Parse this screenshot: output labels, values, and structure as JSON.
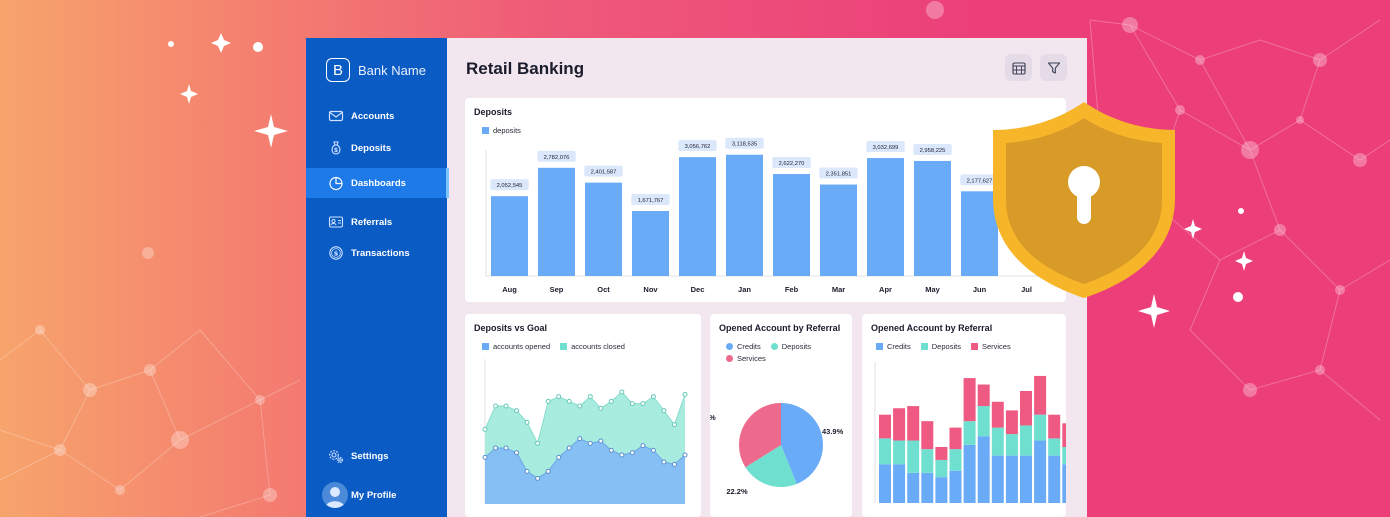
{
  "app": {
    "brand_name": "Bank Name",
    "brand_letter": "B",
    "page_title": "Retail Banking"
  },
  "sidebar": {
    "items": [
      {
        "label": "Accounts",
        "icon": "envelope-icon"
      },
      {
        "label": "Deposits",
        "icon": "money-bag-icon"
      },
      {
        "label": "Dashboards",
        "icon": "pie-chart-icon",
        "active": true
      },
      {
        "label": "Referrals",
        "icon": "id-card-icon"
      },
      {
        "label": "Transactions",
        "icon": "dollar-coin-icon"
      }
    ],
    "settings_label": "Settings",
    "profile_label": "My Profile"
  },
  "toolbar": {
    "calendar_icon": "calendar-icon",
    "filter_icon": "filter-icon"
  },
  "colors": {
    "blue": "#6aabf7",
    "teal": "#6fe0cf",
    "pink": "#ee5a82",
    "sidebar": "#0a5bc4",
    "active": "#1d7ae8"
  },
  "chart_data": [
    {
      "type": "bar",
      "title": "Deposits",
      "categories": [
        "Aug",
        "Sep",
        "Oct",
        "Nov",
        "Dec",
        "Jan",
        "Feb",
        "Mar",
        "Apr",
        "May",
        "Jun",
        "Jul"
      ],
      "series": [
        {
          "name": "deposits",
          "values": [
            2052545,
            2782076,
            2401587,
            1671767,
            3056762,
            3118535,
            2622270,
            2351851,
            3032699,
            2958225,
            2177627,
            null
          ]
        }
      ],
      "data_labels": [
        "2,052,545",
        "2,782,076",
        "2,401,587",
        "1,671,767",
        "3,056,762",
        "3,118,535",
        "2,622,270",
        "2,351,851",
        "3,032,699",
        "2,958,225",
        "2,177,627",
        ""
      ],
      "ylim": [
        0,
        3600000
      ]
    },
    {
      "type": "area",
      "title": "Deposits vs Goal",
      "x": [
        1,
        2,
        3,
        4,
        5,
        6,
        7,
        8,
        9,
        10,
        11,
        12,
        13,
        14,
        15,
        16,
        17,
        18,
        19,
        20
      ],
      "series": [
        {
          "name": "accounts opened",
          "values": [
            32,
            42,
            42,
            40,
            35,
            26,
            44,
            46,
            44,
            42,
            46,
            41,
            44,
            48,
            43,
            43,
            46,
            40,
            34,
            47
          ]
        },
        {
          "name": "accounts closed",
          "values": [
            20,
            24,
            24,
            22,
            14,
            11,
            14,
            20,
            24,
            28,
            26,
            27,
            23,
            21,
            22,
            25,
            23,
            18,
            17,
            21
          ]
        }
      ],
      "ylim": [
        0,
        60
      ]
    },
    {
      "type": "pie",
      "title": "Opened Account by Referral",
      "labels": [
        "Credits",
        "Deposits",
        "Services"
      ],
      "values": [
        43.9,
        22.2,
        33.9
      ],
      "data_labels": [
        "43.9%",
        "22.2%",
        "33.9%"
      ]
    },
    {
      "type": "bar",
      "stacked": true,
      "title": "Opened Account by Referral",
      "categories": [
        "1",
        "2",
        "3",
        "4",
        "5",
        "6",
        "7",
        "8",
        "9",
        "10",
        "11",
        "12",
        "13",
        "14",
        "15"
      ],
      "series": [
        {
          "name": "Credits",
          "values": [
            18,
            18,
            14,
            14,
            12,
            15,
            27,
            31,
            22,
            22,
            22,
            29,
            22,
            18,
            20
          ]
        },
        {
          "name": "Deposits",
          "values": [
            12,
            11,
            15,
            11,
            8,
            10,
            11,
            14,
            13,
            10,
            14,
            12,
            8,
            8,
            9
          ]
        },
        {
          "name": "Services",
          "values": [
            11,
            15,
            16,
            13,
            6,
            10,
            20,
            10,
            12,
            11,
            16,
            18,
            11,
            11,
            17
          ]
        }
      ],
      "ylim": [
        0,
        65
      ]
    }
  ]
}
